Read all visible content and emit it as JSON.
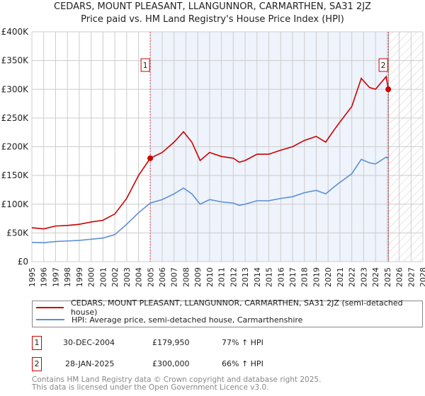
{
  "chart_data": {
    "type": "line",
    "title": "CEDARS, MOUNT PLEASANT, LLANGUNNOR, CARMARTHEN, SA31 2JZ",
    "subtitle": "Price paid vs. HM Land Registry's House Price Index (HPI)",
    "xlim": [
      1995,
      2028
    ],
    "ylim": [
      0,
      400000
    ],
    "x_ticks": [
      "1995",
      "1996",
      "1997",
      "1998",
      "1999",
      "2000",
      "2001",
      "2002",
      "2003",
      "2004",
      "2005",
      "2006",
      "2007",
      "2008",
      "2009",
      "2010",
      "2011",
      "2012",
      "2013",
      "2014",
      "2015",
      "2016",
      "2017",
      "2018",
      "2019",
      "2020",
      "2021",
      "2022",
      "2023",
      "2024",
      "2025",
      "2026",
      "2027",
      "2028"
    ],
    "y_ticks": [
      {
        "v": 0,
        "label": "£0"
      },
      {
        "v": 50000,
        "label": "£50K"
      },
      {
        "v": 100000,
        "label": "£100K"
      },
      {
        "v": 150000,
        "label": "£150K"
      },
      {
        "v": 200000,
        "label": "£200K"
      },
      {
        "v": 250000,
        "label": "£250K"
      },
      {
        "v": 300000,
        "label": "£300K"
      },
      {
        "v": 350000,
        "label": "£350K"
      },
      {
        "v": 400000,
        "label": "£400K"
      }
    ],
    "grid": true,
    "shaded_range": [
      2004.99,
      2025.08
    ],
    "hatched_from": 2025.1,
    "series": [
      {
        "name": "CEDARS, MOUNT PLEASANT, LLANGUNNOR, CARMARTHEN, SA31 2JZ (semi-detached house)",
        "color": "#cc0000",
        "x": [
          1995,
          1996,
          1997,
          1998,
          1999,
          2000,
          2001,
          2002,
          2003,
          2004,
          2004.99,
          2006,
          2007,
          2007.8,
          2008.5,
          2009.2,
          2010,
          2011,
          2012,
          2012.5,
          2013,
          2014,
          2015,
          2016,
          2017,
          2018,
          2019,
          2019.8,
          2020.5,
          2021,
          2022,
          2022.8,
          2023.5,
          2024,
          2024.9,
          2025.08
        ],
        "y": [
          59000,
          57000,
          62000,
          63000,
          65000,
          69000,
          72000,
          83000,
          110000,
          150000,
          180000,
          190000,
          208000,
          226000,
          208000,
          176000,
          190000,
          183000,
          180000,
          173000,
          176000,
          187000,
          187000,
          194000,
          200000,
          211000,
          218000,
          208000,
          229000,
          243000,
          270000,
          319000,
          303000,
          300000,
          322000,
          300000
        ]
      },
      {
        "name": "HPI: Average price, semi-detached house, Carmarthenshire",
        "color": "#5b8fd4",
        "x": [
          1995,
          1996,
          1997,
          1998,
          1999,
          2000,
          2001,
          2002,
          2003,
          2004,
          2005,
          2006,
          2007,
          2007.8,
          2008.5,
          2009.2,
          2010,
          2011,
          2012,
          2012.5,
          2013,
          2014,
          2015,
          2016,
          2017,
          2018,
          2019,
          2019.8,
          2020.5,
          2021,
          2022,
          2022.8,
          2023.5,
          2024,
          2024.9,
          2025.08
        ],
        "y": [
          33500,
          33000,
          35000,
          36000,
          37000,
          39000,
          41000,
          47000,
          65000,
          85000,
          102000,
          108000,
          118000,
          128000,
          118000,
          100000,
          108000,
          104000,
          102000,
          98000,
          100000,
          106000,
          106000,
          110000,
          113000,
          120000,
          124000,
          118000,
          130000,
          138000,
          153000,
          178000,
          172000,
          170000,
          182000,
          180000
        ]
      }
    ],
    "sales": [
      {
        "id": "1",
        "x": 2004.99,
        "y": 179950
      },
      {
        "id": "2",
        "x": 2025.08,
        "y": 300000
      }
    ]
  },
  "legend": {
    "red": "CEDARS, MOUNT PLEASANT, LLANGUNNOR, CARMARTHEN, SA31 2JZ (semi-detached house)",
    "blue": "HPI: Average price, semi-detached house, Carmarthenshire"
  },
  "transactions": [
    {
      "id": "1",
      "date": "30-DEC-2004",
      "price": "£179,950",
      "hpi": "77% ↑ HPI"
    },
    {
      "id": "2",
      "date": "28-JAN-2025",
      "price": "£300,000",
      "hpi": "66% ↑ HPI"
    }
  ],
  "footer": {
    "line1": "Contains HM Land Registry data © Crown copyright and database right 2025.",
    "line2": "This data is licensed under the Open Government Licence v3.0."
  }
}
